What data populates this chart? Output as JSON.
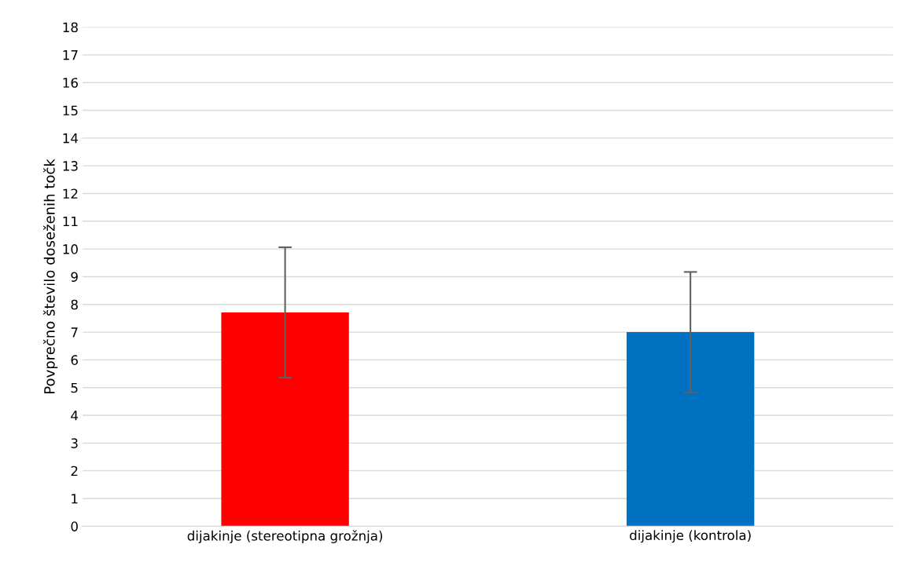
{
  "chart_data": {
    "type": "bar",
    "ylabel": "Povprečno število doseženih točk",
    "categories": [
      "dijakinje (stereotipna grožnja)",
      "dijakinje (kontrola)"
    ],
    "values": [
      7.71,
      7.0
    ],
    "colors": [
      "#ff0000",
      "#0070c0"
    ],
    "errors": [
      2.35,
      2.17
    ],
    "ylim": [
      0,
      18
    ],
    "yticks": [
      0,
      1,
      2,
      3,
      4,
      5,
      6,
      7,
      8,
      9,
      10,
      11,
      12,
      13,
      14,
      15,
      16,
      17,
      18
    ],
    "grid": "y"
  }
}
